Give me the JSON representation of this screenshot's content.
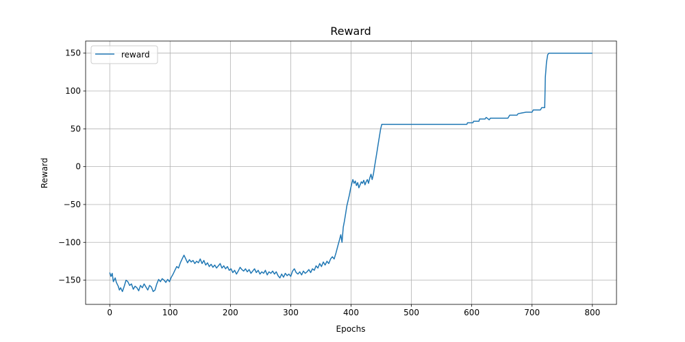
{
  "chart_data": {
    "type": "line",
    "title": "Reward",
    "xlabel": "Epochs",
    "ylabel": "Reward",
    "xlim": [
      -40,
      840
    ],
    "ylim": [
      -182,
      166
    ],
    "xticks": [
      0,
      100,
      200,
      300,
      400,
      500,
      600,
      700,
      800
    ],
    "yticks": [
      -150,
      -100,
      -50,
      0,
      50,
      100,
      150
    ],
    "grid": true,
    "legend": "top-left",
    "colors": {
      "series": "#1f77b4",
      "grid": "#b0b0b0",
      "axes": "#000000"
    },
    "series": [
      {
        "name": "reward",
        "points": [
          [
            0,
            -140
          ],
          [
            2,
            -145
          ],
          [
            4,
            -141
          ],
          [
            6,
            -152
          ],
          [
            9,
            -147
          ],
          [
            11,
            -153
          ],
          [
            14,
            -158
          ],
          [
            16,
            -163
          ],
          [
            18,
            -160
          ],
          [
            21,
            -165
          ],
          [
            24,
            -158
          ],
          [
            27,
            -150
          ],
          [
            30,
            -152
          ],
          [
            33,
            -157
          ],
          [
            36,
            -155
          ],
          [
            39,
            -162
          ],
          [
            42,
            -158
          ],
          [
            45,
            -160
          ],
          [
            48,
            -164
          ],
          [
            51,
            -157
          ],
          [
            54,
            -160
          ],
          [
            57,
            -155
          ],
          [
            60,
            -159
          ],
          [
            63,
            -163
          ],
          [
            66,
            -157
          ],
          [
            69,
            -159
          ],
          [
            72,
            -165
          ],
          [
            75,
            -163
          ],
          [
            78,
            -155
          ],
          [
            81,
            -149
          ],
          [
            84,
            -152
          ],
          [
            87,
            -148
          ],
          [
            90,
            -150
          ],
          [
            93,
            -153
          ],
          [
            96,
            -149
          ],
          [
            99,
            -152
          ],
          [
            102,
            -146
          ],
          [
            105,
            -142
          ],
          [
            108,
            -137
          ],
          [
            111,
            -132
          ],
          [
            114,
            -134
          ],
          [
            117,
            -127
          ],
          [
            120,
            -122
          ],
          [
            123,
            -117
          ],
          [
            126,
            -122
          ],
          [
            129,
            -127
          ],
          [
            132,
            -123
          ],
          [
            135,
            -126
          ],
          [
            138,
            -124
          ],
          [
            141,
            -128
          ],
          [
            144,
            -125
          ],
          [
            147,
            -127
          ],
          [
            150,
            -122
          ],
          [
            153,
            -128
          ],
          [
            156,
            -124
          ],
          [
            159,
            -130
          ],
          [
            162,
            -127
          ],
          [
            165,
            -132
          ],
          [
            168,
            -129
          ],
          [
            171,
            -133
          ],
          [
            174,
            -130
          ],
          [
            177,
            -134
          ],
          [
            180,
            -131
          ],
          [
            183,
            -128
          ],
          [
            186,
            -134
          ],
          [
            189,
            -131
          ],
          [
            192,
            -135
          ],
          [
            195,
            -132
          ],
          [
            198,
            -137
          ],
          [
            201,
            -135
          ],
          [
            204,
            -140
          ],
          [
            207,
            -137
          ],
          [
            210,
            -142
          ],
          [
            213,
            -138
          ],
          [
            216,
            -133
          ],
          [
            219,
            -136
          ],
          [
            222,
            -138
          ],
          [
            225,
            -135
          ],
          [
            228,
            -139
          ],
          [
            231,
            -136
          ],
          [
            234,
            -141
          ],
          [
            237,
            -138
          ],
          [
            240,
            -135
          ],
          [
            243,
            -140
          ],
          [
            246,
            -137
          ],
          [
            249,
            -142
          ],
          [
            252,
            -139
          ],
          [
            255,
            -141
          ],
          [
            258,
            -137
          ],
          [
            261,
            -143
          ],
          [
            264,
            -139
          ],
          [
            267,
            -141
          ],
          [
            270,
            -138
          ],
          [
            273,
            -142
          ],
          [
            276,
            -139
          ],
          [
            279,
            -144
          ],
          [
            282,
            -147
          ],
          [
            285,
            -142
          ],
          [
            288,
            -146
          ],
          [
            291,
            -141
          ],
          [
            294,
            -144
          ],
          [
            297,
            -142
          ],
          [
            300,
            -145
          ],
          [
            303,
            -138
          ],
          [
            306,
            -135
          ],
          [
            309,
            -140
          ],
          [
            312,
            -142
          ],
          [
            315,
            -139
          ],
          [
            318,
            -143
          ],
          [
            321,
            -138
          ],
          [
            324,
            -141
          ],
          [
            327,
            -139
          ],
          [
            330,
            -136
          ],
          [
            333,
            -140
          ],
          [
            336,
            -135
          ],
          [
            339,
            -137
          ],
          [
            342,
            -131
          ],
          [
            345,
            -134
          ],
          [
            348,
            -128
          ],
          [
            351,
            -132
          ],
          [
            354,
            -126
          ],
          [
            357,
            -130
          ],
          [
            360,
            -125
          ],
          [
            363,
            -128
          ],
          [
            366,
            -122
          ],
          [
            369,
            -119
          ],
          [
            372,
            -122
          ],
          [
            375,
            -114
          ],
          [
            378,
            -105
          ],
          [
            381,
            -96
          ],
          [
            383,
            -90
          ],
          [
            385,
            -100
          ],
          [
            387,
            -80
          ],
          [
            389,
            -72
          ],
          [
            391,
            -62
          ],
          [
            393,
            -52
          ],
          [
            395,
            -45
          ],
          [
            397,
            -38
          ],
          [
            399,
            -30
          ],
          [
            401,
            -23
          ],
          [
            403,
            -17
          ],
          [
            405,
            -22
          ],
          [
            407,
            -19
          ],
          [
            409,
            -25
          ],
          [
            411,
            -21
          ],
          [
            413,
            -28
          ],
          [
            415,
            -24
          ],
          [
            417,
            -20
          ],
          [
            419,
            -22
          ],
          [
            421,
            -18
          ],
          [
            423,
            -24
          ],
          [
            425,
            -20
          ],
          [
            427,
            -17
          ],
          [
            429,
            -22
          ],
          [
            431,
            -15
          ],
          [
            433,
            -10
          ],
          [
            435,
            -17
          ],
          [
            437,
            -10
          ],
          [
            439,
            0
          ],
          [
            441,
            10
          ],
          [
            443,
            20
          ],
          [
            445,
            30
          ],
          [
            447,
            40
          ],
          [
            449,
            50
          ],
          [
            451,
            56
          ],
          [
            460,
            56
          ],
          [
            500,
            56
          ],
          [
            550,
            56
          ],
          [
            592,
            56
          ],
          [
            593,
            58
          ],
          [
            602,
            58
          ],
          [
            603,
            60
          ],
          [
            612,
            60
          ],
          [
            613,
            63
          ],
          [
            622,
            63
          ],
          [
            624,
            65
          ],
          [
            629,
            62
          ],
          [
            631,
            64
          ],
          [
            660,
            64
          ],
          [
            663,
            68
          ],
          [
            675,
            68
          ],
          [
            677,
            70
          ],
          [
            690,
            72
          ],
          [
            700,
            72
          ],
          [
            702,
            75
          ],
          [
            714,
            75
          ],
          [
            716,
            78
          ],
          [
            721,
            78
          ],
          [
            722,
            118
          ],
          [
            724,
            138
          ],
          [
            726,
            148
          ],
          [
            728,
            150
          ],
          [
            760,
            150
          ],
          [
            800,
            150
          ]
        ]
      }
    ]
  }
}
